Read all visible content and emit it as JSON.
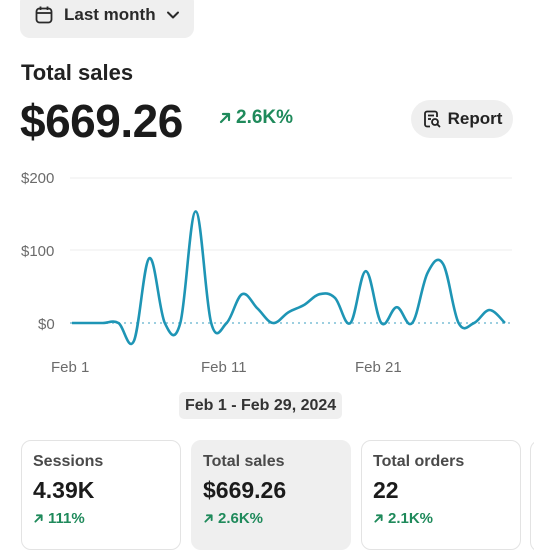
{
  "date_filter": {
    "label": "Last month",
    "icon": "calendar-icon"
  },
  "summary": {
    "title": "Total sales",
    "value": "$669.26",
    "delta": "2.6K%",
    "report_label": "Report"
  },
  "colors": {
    "accent": "#1e95b5",
    "positive": "#1f8a5b",
    "pill": "#efefef"
  },
  "chart_data": {
    "type": "line",
    "y_ticks": [
      "$200",
      "$100",
      "$0"
    ],
    "x_ticks": [
      "Feb 1",
      "Feb 11",
      "Feb 21"
    ],
    "ylim": [
      -30,
      200
    ],
    "x": [
      1,
      2,
      3,
      4,
      5,
      6,
      7,
      8,
      9,
      10,
      11,
      12,
      13,
      14,
      15,
      16,
      17,
      18,
      19,
      20,
      21,
      22,
      23,
      24,
      25,
      26,
      27,
      28,
      29
    ],
    "values": [
      0,
      0,
      0,
      0,
      -25,
      90,
      0,
      0,
      155,
      0,
      0,
      40,
      20,
      0,
      15,
      25,
      40,
      35,
      0,
      72,
      0,
      22,
      0,
      70,
      82,
      0,
      0,
      18,
      0
    ],
    "baseline_dotted": true,
    "grid": true
  },
  "range_label": "Feb 1 - Feb 29, 2024",
  "cards": [
    {
      "title": "Sessions",
      "value": "4.39K",
      "delta": "111%"
    },
    {
      "title": "Total sales",
      "value": "$669.26",
      "delta": "2.6K%"
    },
    {
      "title": "Total orders",
      "value": "22",
      "delta": "2.1K%"
    }
  ]
}
